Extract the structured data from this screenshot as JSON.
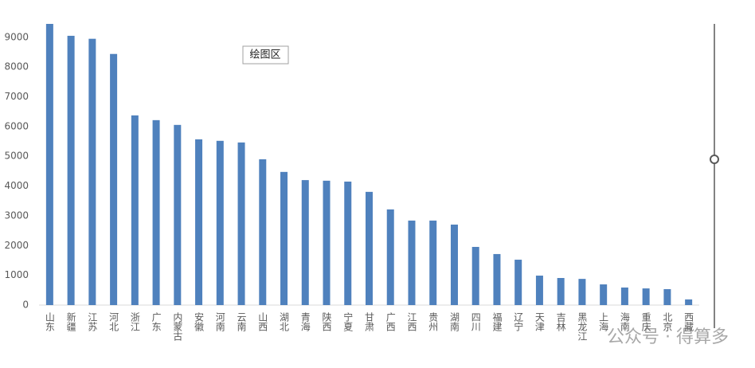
{
  "chart_data": {
    "type": "bar",
    "categories": [
      "山东",
      "新疆",
      "江苏",
      "河北",
      "浙江",
      "广东",
      "内蒙古",
      "安徽",
      "河南",
      "云南",
      "山西",
      "湖北",
      "青海",
      "陕西",
      "宁夏",
      "甘肃",
      "广西",
      "江西",
      "贵州",
      "湖南",
      "四川",
      "福建",
      "辽宁",
      "天津",
      "吉林",
      "黑龙江",
      "上海",
      "海南",
      "重庆",
      "北京",
      "西藏"
    ],
    "values": [
      9450,
      9050,
      8950,
      8440,
      6375,
      6215,
      6055,
      5570,
      5520,
      5465,
      4900,
      4475,
      4200,
      4180,
      4150,
      3805,
      3215,
      2840,
      2840,
      2705,
      1955,
      1715,
      1525,
      990,
      910,
      880,
      695,
      590,
      560,
      535,
      190
    ],
    "color": "#4f81bd",
    "ylim": [
      0,
      9450
    ],
    "yticks": [
      0,
      1000,
      2000,
      3000,
      4000,
      5000,
      6000,
      7000,
      8000,
      9000
    ],
    "tooltip": "绘图区",
    "watermark": "公众号 · 得算多"
  }
}
